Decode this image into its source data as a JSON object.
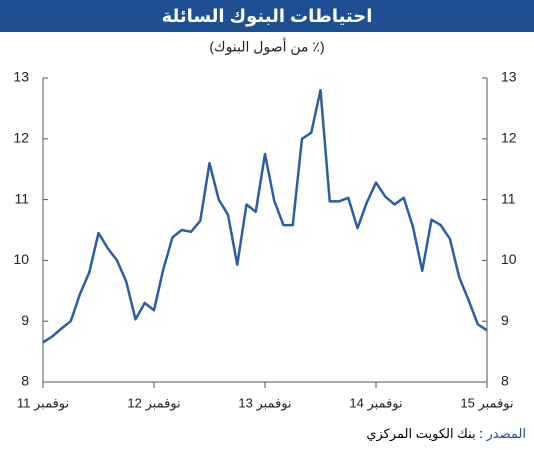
{
  "chart_data": {
    "type": "line",
    "title": "احتياطات البنوك السائلة",
    "subtitle": "(٪ من أصول البنوك)",
    "categories": [
      "نوفمبر 11",
      null,
      null,
      null,
      null,
      null,
      null,
      null,
      null,
      null,
      null,
      null,
      "نوفمبر 12",
      null,
      null,
      null,
      null,
      null,
      null,
      null,
      null,
      null,
      null,
      null,
      "نوفمبر 13",
      null,
      null,
      null,
      null,
      null,
      null,
      null,
      null,
      null,
      null,
      null,
      "نوفمبر 14",
      null,
      null,
      null,
      null,
      null,
      null,
      null,
      null,
      null,
      null,
      null,
      "نوفمبر 15"
    ],
    "series": [
      {
        "color": "#2b5ea6",
        "values": [
          8.65,
          8.75,
          8.88,
          9.0,
          9.45,
          9.8,
          10.45,
          10.2,
          10.0,
          9.65,
          9.03,
          9.3,
          9.18,
          9.85,
          10.38,
          10.5,
          10.47,
          10.65,
          11.6,
          11.0,
          10.75,
          9.93,
          10.92,
          10.8,
          11.75,
          10.98,
          10.58,
          10.58,
          12.0,
          12.1,
          12.8,
          10.97,
          10.97,
          11.03,
          10.53,
          10.95,
          11.28,
          11.05,
          10.92,
          11.03,
          10.55,
          9.83,
          10.67,
          10.58,
          10.35,
          9.72,
          9.35,
          8.95,
          8.85
        ]
      }
    ],
    "ylim": [
      8,
      13
    ],
    "yticks": [
      8,
      9,
      10,
      11,
      12,
      13
    ],
    "y2lim": [
      8,
      13
    ],
    "y2ticks": [
      8,
      9,
      10,
      11,
      12,
      13
    ],
    "source_label": "المصدر",
    "source_text": ": بنك الكويت المركزي"
  }
}
